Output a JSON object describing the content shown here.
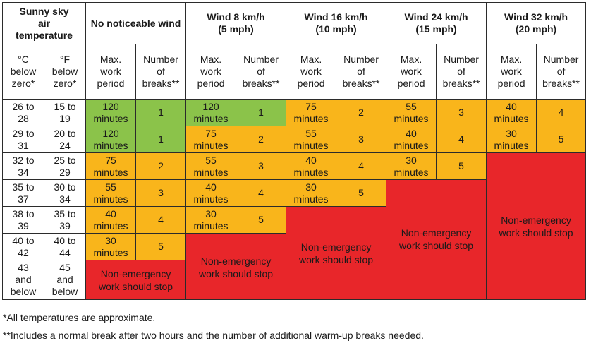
{
  "header": {
    "temp_title": [
      "Sunny sky",
      "air",
      "temperature"
    ],
    "wind_cols": [
      {
        "title": [
          "No noticeable wind"
        ]
      },
      {
        "title": [
          "Wind 8 km/h",
          "(5 mph)"
        ]
      },
      {
        "title": [
          "Wind 16 km/h",
          "(10 mph)"
        ]
      },
      {
        "title": [
          "Wind 24 km/h",
          "(15 mph)"
        ]
      },
      {
        "title": [
          "Wind 32 km/h",
          "(20 mph)"
        ]
      }
    ],
    "celsius": [
      "°C",
      "below",
      "zero*"
    ],
    "fahrenheit": [
      "°F",
      "below",
      "zero*"
    ],
    "max_work": [
      "Max.",
      "work",
      "period"
    ],
    "breaks": [
      "Number",
      "of",
      "breaks**"
    ]
  },
  "rows": [
    {
      "c": [
        "26 to",
        "28"
      ],
      "f": [
        "15 to",
        "19"
      ]
    },
    {
      "c": [
        "29 to",
        "31"
      ],
      "f": [
        "20 to",
        "24"
      ]
    },
    {
      "c": [
        "32 to",
        "34"
      ],
      "f": [
        "25 to",
        "29"
      ]
    },
    {
      "c": [
        "35 to",
        "37"
      ],
      "f": [
        "30 to",
        "34"
      ]
    },
    {
      "c": [
        "38 to",
        "39"
      ],
      "f": [
        "35 to",
        "39"
      ]
    },
    {
      "c": [
        "40 to",
        "42"
      ],
      "f": [
        "40 to",
        "44"
      ]
    },
    {
      "c": [
        "43",
        "and",
        "below"
      ],
      "f": [
        "45",
        "and",
        "below"
      ]
    }
  ],
  "cells": {
    "nw": [
      [
        "120",
        "minutes",
        "1"
      ],
      [
        "120",
        "minutes",
        "1"
      ],
      [
        "75",
        "minutes",
        "2"
      ],
      [
        "55",
        "minutes",
        "3"
      ],
      [
        "40",
        "minutes",
        "4"
      ],
      [
        "30",
        "minutes",
        "5"
      ]
    ],
    "w8": [
      [
        "120",
        "minutes",
        "1"
      ],
      [
        "75",
        "minutes",
        "2"
      ],
      [
        "55",
        "minutes",
        "3"
      ],
      [
        "40",
        "minutes",
        "4"
      ],
      [
        "30",
        "minutes",
        "5"
      ]
    ],
    "w16": [
      [
        "75",
        "minutes",
        "2"
      ],
      [
        "55",
        "minutes",
        "3"
      ],
      [
        "40",
        "minutes",
        "4"
      ],
      [
        "30",
        "minutes",
        "5"
      ]
    ],
    "w24": [
      [
        "55",
        "minutes",
        "3"
      ],
      [
        "40",
        "minutes",
        "4"
      ],
      [
        "30",
        "minutes",
        "5"
      ]
    ],
    "w32": [
      [
        "40",
        "minutes",
        "4"
      ],
      [
        "30",
        "minutes",
        "5"
      ]
    ]
  },
  "stop_text": [
    "Non-emergency",
    "work should stop"
  ],
  "colors": {
    "green": "#8bc34a",
    "yellow": "#f9b51b",
    "red": "#e8262a"
  },
  "footnotes": {
    "f1": "*All temperatures are approximate.",
    "f2": "**Includes a normal break after two hours and the number of additional warm-up breaks needed."
  }
}
